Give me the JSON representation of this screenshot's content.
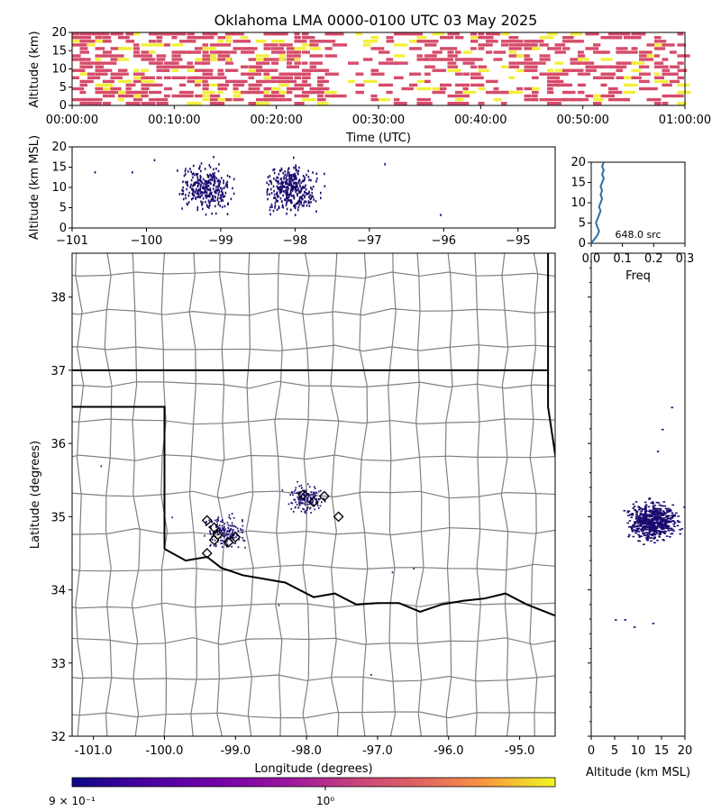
{
  "figure": {
    "title": "Oklahoma LMA 0000-0100 UTC 03 May 2025",
    "colorbar_tick_left": "9 × 10⁻¹",
    "colorbar_tick_mid": "10⁰",
    "colors": {
      "source_dot": "#1a0a6e",
      "time_high": "#f3ef3a",
      "time_low": "#d64b6a",
      "state_border": "#000000",
      "county_border": "#808080",
      "hist_line": "#2f6fa3"
    }
  },
  "chart_data": [
    {
      "id": "time_height",
      "type": "heatmap",
      "ylabel": "Altitude (km)",
      "xlabel": "Time (UTC)",
      "xticks": [
        "00:00:00",
        "00:10:00",
        "00:20:00",
        "00:30:00",
        "00:40:00",
        "00:50:00",
        "01:00:00"
      ],
      "xlim": [
        "00:00:00",
        "01:00:00"
      ],
      "ylim": [
        0,
        20
      ],
      "yticks": [
        "0",
        "5",
        "10",
        "15",
        "20"
      ],
      "colorscale": "plasma"
    },
    {
      "id": "lon_alt",
      "type": "scatter",
      "ylabel": "Altitude (km MSL)",
      "xlim": [
        -101,
        -94.5
      ],
      "ylim": [
        0,
        20
      ],
      "xticks": [
        "−101",
        "−100",
        "−99",
        "−98",
        "−97",
        "−96",
        "−95"
      ],
      "yticks": [
        "0",
        "5",
        "10",
        "15",
        "20"
      ]
    },
    {
      "id": "alt_hist",
      "type": "line",
      "xlabel": "Freq",
      "annotation": "648.0 src",
      "xlim": [
        0,
        0.3
      ],
      "ylim": [
        0,
        20
      ],
      "xticks": [
        "0.0",
        "0.1",
        "0.2",
        "0.3"
      ],
      "yticks": [
        "0",
        "5",
        "10",
        "15",
        "20"
      ],
      "x": [
        0.0,
        0.01,
        0.02,
        0.025,
        0.02,
        0.015,
        0.02,
        0.025,
        0.03,
        0.025,
        0.03,
        0.035,
        0.03,
        0.035,
        0.03,
        0.035,
        0.04,
        0.035,
        0.04,
        0.035,
        0.04
      ],
      "y": [
        0,
        1,
        2,
        3,
        4,
        5,
        6,
        7,
        8,
        9,
        10,
        11,
        12,
        13,
        14,
        15,
        16,
        17,
        18,
        19,
        20
      ]
    },
    {
      "id": "plan_view",
      "type": "scatter",
      "xlabel": "Longitude (degrees)",
      "ylabel": "Latitude (degrees)",
      "xlim": [
        -101.3,
        -94.5
      ],
      "ylim": [
        32,
        38.6
      ],
      "xticks": [
        "-101.0",
        "-100.0",
        "-99.0",
        "-98.0",
        "-97.0",
        "-96.0",
        "-95.0"
      ],
      "yticks": [
        "32",
        "33",
        "34",
        "35",
        "36",
        "37",
        "38"
      ],
      "flash_markers": [
        {
          "lon": -99.4,
          "lat": 34.95
        },
        {
          "lon": -99.3,
          "lat": 34.85
        },
        {
          "lon": -99.25,
          "lat": 34.75
        },
        {
          "lon": -99.1,
          "lat": 34.65
        },
        {
          "lon": -99.0,
          "lat": 34.72
        },
        {
          "lon": -99.4,
          "lat": 34.5
        },
        {
          "lon": -99.3,
          "lat": 34.68
        },
        {
          "lon": -98.05,
          "lat": 35.3
        },
        {
          "lon": -97.9,
          "lat": 35.2
        },
        {
          "lon": -97.75,
          "lat": 35.28
        },
        {
          "lon": -97.55,
          "lat": 35.0
        }
      ]
    },
    {
      "id": "alt_lat",
      "type": "scatter",
      "xlabel": "Altitude (km MSL)",
      "xlim": [
        0,
        20
      ],
      "ylim": [
        32,
        38.6
      ],
      "xticks": [
        "0",
        "5",
        "10",
        "15",
        "20"
      ]
    }
  ]
}
